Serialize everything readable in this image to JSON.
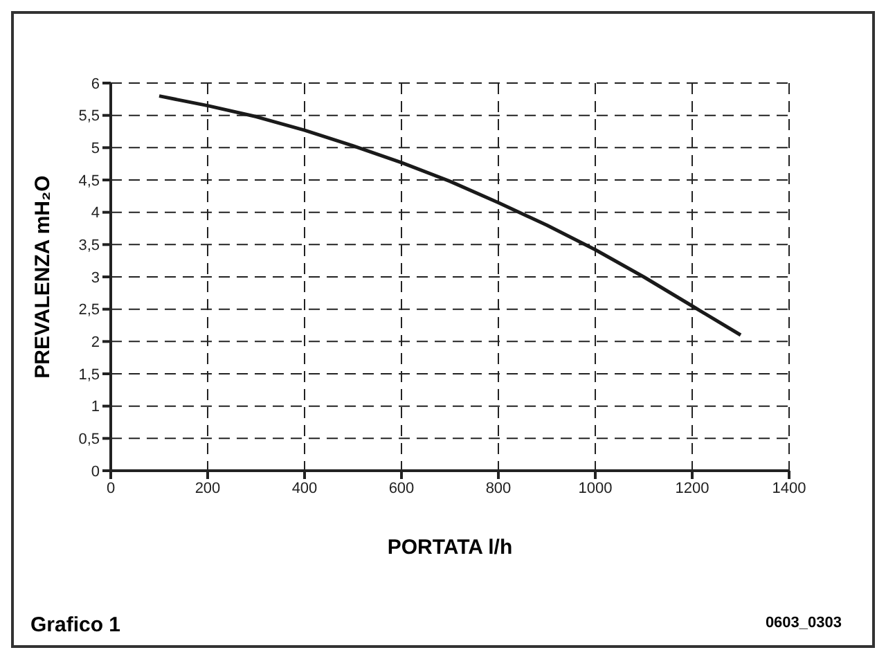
{
  "chart_data": {
    "type": "line",
    "xlabel": "PORTATA l/h",
    "ylabel": "PREVALENZA mH₂O",
    "annotations": [
      "Grafico 1",
      "0603_0303"
    ],
    "x": [
      100,
      200,
      300,
      400,
      500,
      600,
      700,
      800,
      900,
      1000,
      1100,
      1200,
      1300
    ],
    "series": [
      {
        "color": "#1a1a1a",
        "values": [
          5.8,
          5.65,
          5.48,
          5.27,
          5.03,
          4.77,
          4.48,
          4.15,
          3.8,
          3.42,
          3.0,
          2.55,
          2.1
        ]
      }
    ],
    "xlim": [
      0,
      1400
    ],
    "xticks": [
      0,
      200,
      400,
      600,
      800,
      1000,
      1200,
      1400
    ],
    "ylim": [
      0,
      6
    ],
    "yticks": [
      0,
      {
        "value": 0.5,
        "label": "0,5"
      },
      1,
      {
        "value": 1.5,
        "label": "1,5"
      },
      2,
      {
        "value": 2.5,
        "label": "2,5"
      },
      3,
      {
        "value": 3.5,
        "label": "3,5"
      },
      4,
      {
        "value": 4.5,
        "label": "4,5"
      },
      5,
      {
        "value": 5.5,
        "label": "5,5"
      },
      6
    ],
    "grid": true,
    "marker": "none",
    "line_style": "solid"
  }
}
